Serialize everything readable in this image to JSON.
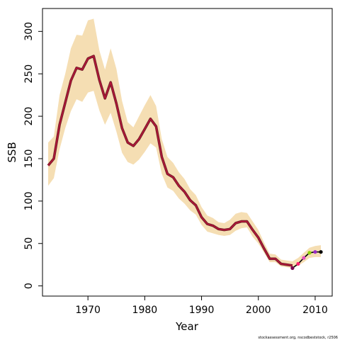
{
  "chart_data": {
    "type": "line",
    "title": "",
    "xlabel": "Year",
    "ylabel": "SSB",
    "xlim": [
      1962,
      2013
    ],
    "ylim": [
      -12,
      327
    ],
    "x_ticks": [
      1970,
      1980,
      1990,
      2000,
      2010
    ],
    "y_ticks": [
      0,
      50,
      100,
      150,
      200,
      250,
      300
    ],
    "grid": false,
    "legend": "none",
    "footnote": "stockassessment.org, nscodbeststock, r2506",
    "colors": {
      "band": "#f5deb3",
      "line_outer": "#7a1f2b",
      "line_inner": "#c0123c",
      "forecast_line": "#000000"
    },
    "series": [
      {
        "x": [
          1963,
          1964,
          1965,
          1966,
          1967,
          1968,
          1969,
          1970,
          1971,
          1972,
          1973,
          1974,
          1975,
          1976,
          1977,
          1978,
          1979,
          1980,
          1981,
          1982,
          1983,
          1984,
          1985,
          1986,
          1987,
          1988,
          1989,
          1990,
          1991,
          1992,
          1993,
          1994,
          1995,
          1996,
          1997,
          1998,
          1999,
          2000,
          2001,
          2002,
          2003,
          2004,
          2005,
          2006
        ],
        "values": [
          142,
          150,
          190,
          216,
          242,
          257,
          255,
          268,
          271,
          243,
          221,
          240,
          215,
          186,
          169,
          165,
          173,
          185,
          197,
          188,
          152,
          132,
          128,
          118,
          111,
          101,
          95,
          81,
          73,
          71,
          67,
          66,
          67,
          74,
          76,
          76,
          66,
          57,
          44,
          32,
          32,
          26,
          25,
          24
        ]
      }
    ],
    "band": {
      "x": [
        1963,
        1964,
        1965,
        1966,
        1967,
        1968,
        1969,
        1970,
        1971,
        1972,
        1973,
        1974,
        1975,
        1976,
        1977,
        1978,
        1979,
        1980,
        1981,
        1982,
        1983,
        1984,
        1985,
        1986,
        1987,
        1988,
        1989,
        1990,
        1991,
        1992,
        1993,
        1994,
        1995,
        1996,
        1997,
        1998,
        1999,
        2000,
        2001,
        2002,
        2003,
        2004,
        2005,
        2006,
        2007,
        2008,
        2009,
        2010,
        2011
      ],
      "upper": [
        169,
        176,
        225,
        250,
        280,
        296,
        295,
        313,
        315,
        278,
        255,
        280,
        256,
        218,
        193,
        187,
        200,
        213,
        225,
        212,
        173,
        152,
        145,
        134,
        126,
        114,
        107,
        93,
        83,
        80,
        75,
        74,
        78,
        85,
        87,
        86,
        76,
        66,
        51,
        38,
        37,
        31,
        30,
        29,
        33,
        39,
        45,
        47,
        48
      ],
      "lower": [
        118,
        127,
        161,
        186,
        206,
        220,
        217,
        228,
        230,
        207,
        190,
        204,
        182,
        157,
        146,
        143,
        149,
        158,
        168,
        163,
        132,
        116,
        112,
        103,
        97,
        89,
        84,
        72,
        64,
        62,
        60,
        59,
        60,
        65,
        68,
        69,
        58,
        50,
        39,
        28,
        28,
        23,
        22,
        21,
        24,
        28,
        33,
        34,
        34
      ]
    },
    "forecast": {
      "x": [
        2006,
        2007,
        2008,
        2009,
        2010,
        2011
      ],
      "values": [
        21,
        26,
        33,
        39,
        40,
        40
      ],
      "point_colors": [
        "#7a0050",
        "#ff1f6e",
        "#e64fbf",
        "#8fd400",
        "#9a2ac6",
        "#000000"
      ]
    }
  }
}
